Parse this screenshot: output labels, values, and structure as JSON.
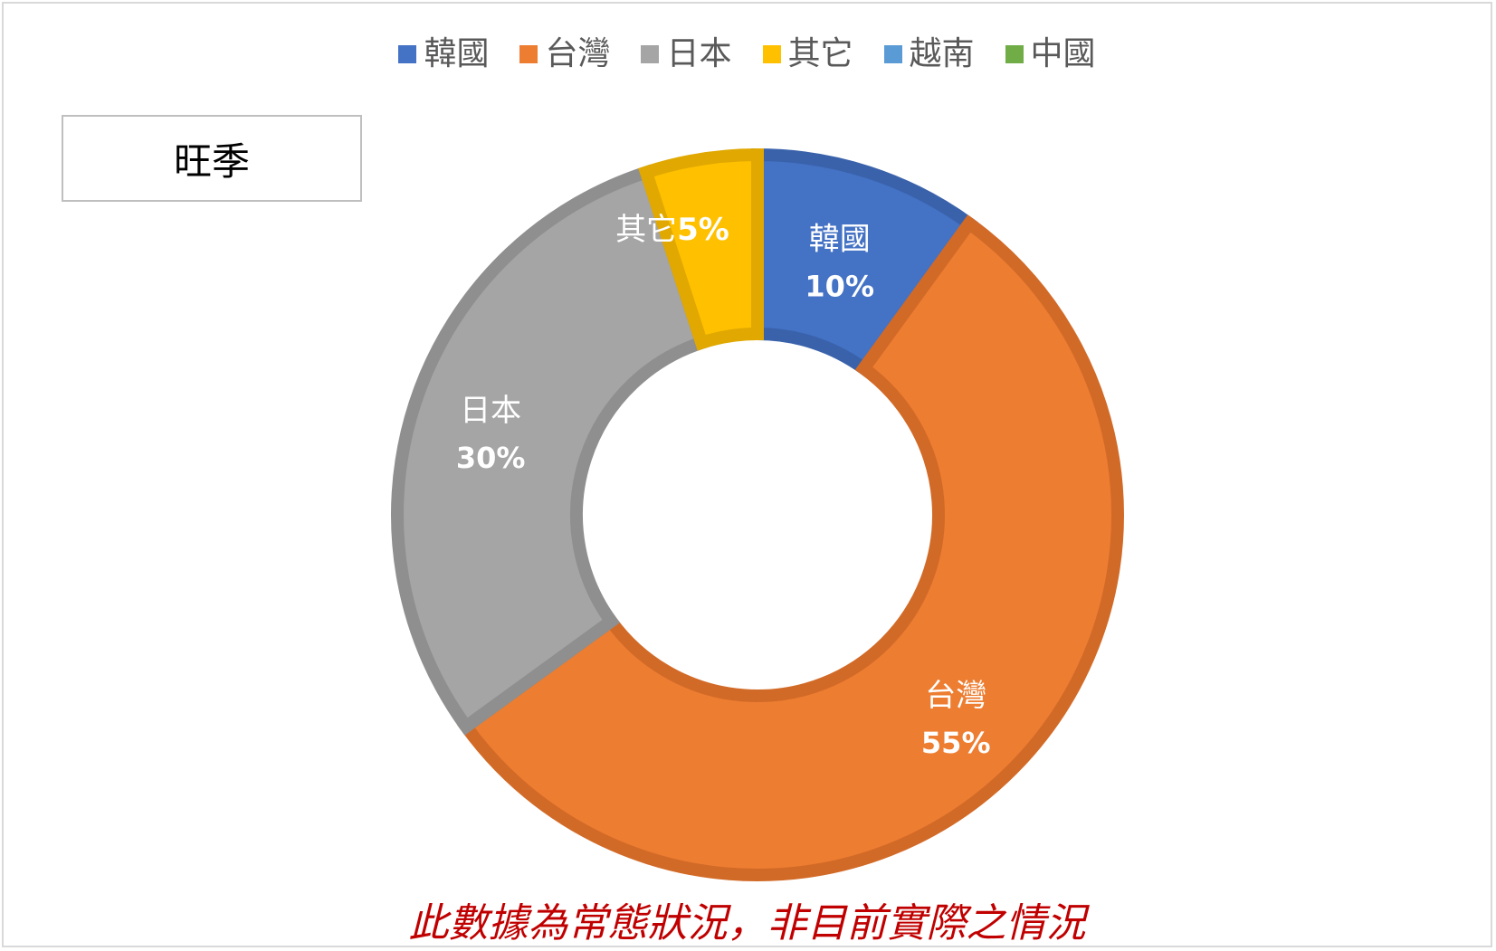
{
  "note_box": {
    "text": "旺季"
  },
  "footnote": "此數據為常態狀況，非目前實際之情況",
  "chart_data": {
    "type": "pie",
    "variant": "donut",
    "legend_position": "top",
    "start_angle_deg": 0,
    "series": [
      {
        "name": "韓國",
        "value": 10,
        "label": "韓國",
        "value_label": "10%",
        "color": "#4472c4",
        "border": "#3a62ab"
      },
      {
        "name": "台灣",
        "value": 55,
        "label": "台灣",
        "value_label": "55%",
        "color": "#ed7d31",
        "border": "#d26a27"
      },
      {
        "name": "日本",
        "value": 30,
        "label": "日本",
        "value_label": "30%",
        "color": "#a5a5a5",
        "border": "#8f8f8f"
      },
      {
        "name": "其它",
        "value": 5,
        "label": "其它",
        "value_label": "5%",
        "color": "#ffc000",
        "border": "#e0a800"
      },
      {
        "name": "越南",
        "value": 0,
        "label": "",
        "value_label": "",
        "color": "#5b9bd5",
        "border": "#5b9bd5"
      },
      {
        "name": "中國",
        "value": 0,
        "label": "",
        "value_label": "",
        "color": "#70ad47",
        "border": "#70ad47"
      }
    ]
  }
}
